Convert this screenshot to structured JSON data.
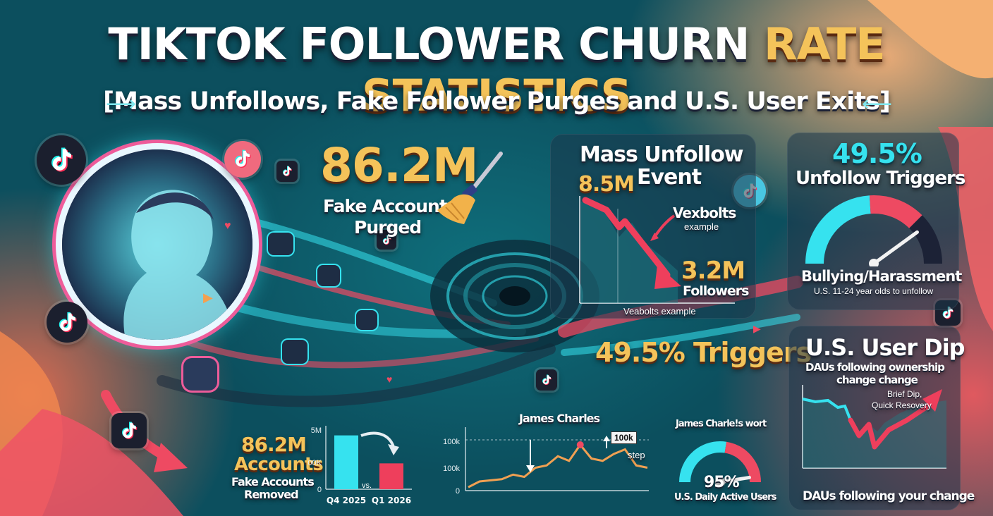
{
  "title": {
    "part1": "TIKTOK FOLLOWER CHURN ",
    "part2": "RATE STATISTICS"
  },
  "subtitle": "[Mass Unfollows, Fake Follower Purges and U.S. User Exits]",
  "fake_purged": {
    "value": "86.2M",
    "label_line1": "Fake Accounts",
    "label_line2": "Purged"
  },
  "mass_unfollow": {
    "title_line1": "Mass Unfollow",
    "title_line2": "Event",
    "start_value": "8.5M",
    "annotation": "Vexbolts",
    "annotation_sub": "example",
    "end_value": "3.2M",
    "end_label": "Followers",
    "caption": "Veabolts example"
  },
  "unfollow_triggers": {
    "value": "49.5%",
    "label": "Unfollow Triggers",
    "gauge_fraction": 0.8,
    "category": "Bullying/Harassment",
    "note": "U.S. 11-24 year olds to unfollow"
  },
  "triggers_banner": "49.5% Triggers",
  "user_dip": {
    "title": "U.S. User Dip",
    "subtitle_line1": "DAUs following ownership",
    "subtitle_line2": "change change",
    "annotation_line1": "Brief Dip,",
    "annotation_line2": "Quick Resovery",
    "caption": "DAUs following your change"
  },
  "accounts_removed": {
    "value": "86.2M",
    "word": "Accounts",
    "label_line1": "Fake Accounts",
    "label_line2": "Removed",
    "chart_data": {
      "type": "bar",
      "categories": [
        "Q4 2025",
        "Q1 2026"
      ],
      "values": [
        5,
        2.4
      ],
      "y_ticks": [
        "5M",
        "00K",
        "0"
      ],
      "ylim": [
        0,
        5.5
      ],
      "separator": "vs."
    }
  },
  "james_charles": {
    "title": "James Charles",
    "chart_data": {
      "type": "line",
      "y_ticks": [
        "100k",
        "100k",
        "0"
      ],
      "values": [
        3,
        8,
        9,
        10,
        14,
        12,
        20,
        22,
        30,
        26,
        40,
        28,
        26,
        32,
        36,
        22,
        20
      ],
      "ylim": [
        0,
        48
      ],
      "annotation": "100k",
      "annotation_sub": "step"
    }
  },
  "daily_active": {
    "title": "James Charle!s wort",
    "value": "95%",
    "label": "U.S. Daily Active Users",
    "gauge_fraction": 0.95
  },
  "colors": {
    "gold": "#f4c35a",
    "teal": "#36e2ef",
    "coral": "#ee4a62",
    "dark": "#1b1f2e"
  },
  "icons": [
    "tiktok-note-icon",
    "broom-icon",
    "user-icon",
    "heart-icon",
    "play-icon",
    "arrow-icon"
  ]
}
